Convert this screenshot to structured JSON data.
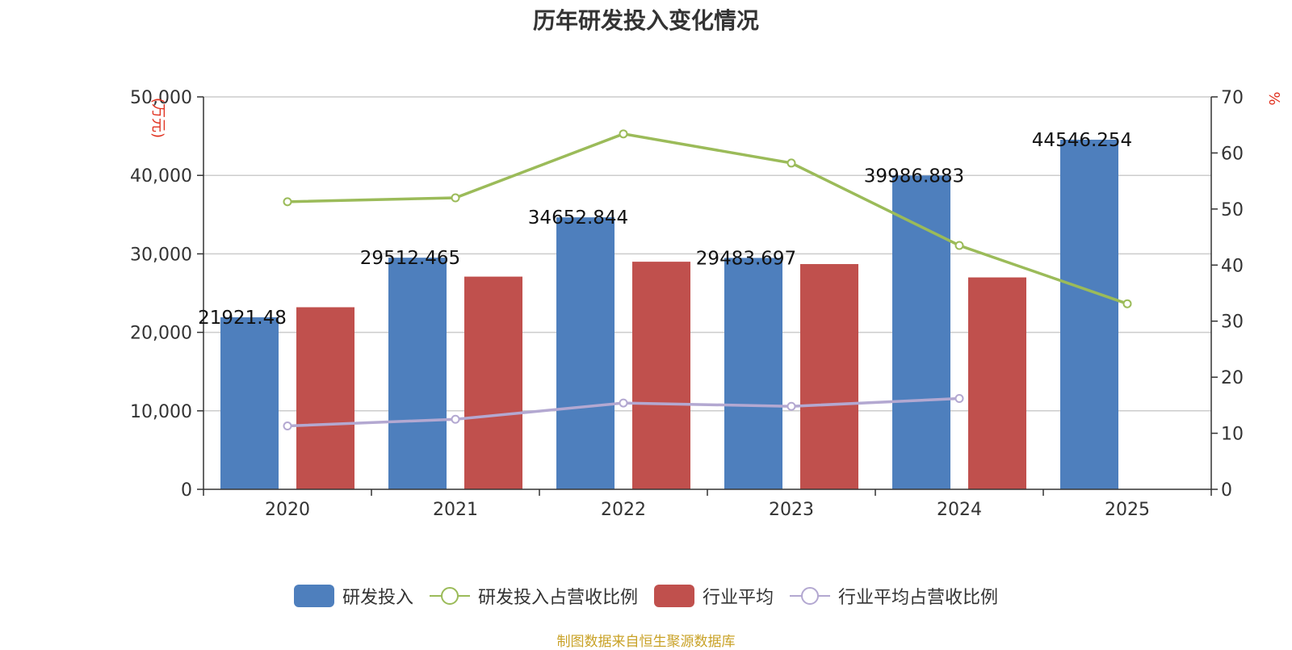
{
  "chart_data": {
    "type": "bar",
    "title": "历年研发投入变化情况",
    "categories": [
      "2020",
      "2021",
      "2022",
      "2023",
      "2024",
      "2025"
    ],
    "left_axis": {
      "unit": "万元",
      "ylim": [
        0,
        50000
      ],
      "ticks": [
        "0",
        "10,000",
        "20,000",
        "30,000",
        "40,000",
        "50,000"
      ],
      "tick_values": [
        0,
        10000,
        20000,
        30000,
        40000,
        50000
      ]
    },
    "right_axis": {
      "unit": "%",
      "ylim": [
        0,
        70
      ],
      "ticks": [
        "0",
        "10",
        "20",
        "30",
        "40",
        "50",
        "60",
        "70"
      ],
      "tick_values": [
        0,
        10,
        20,
        30,
        40,
        50,
        60,
        70
      ]
    },
    "series": [
      {
        "name": "研发投入",
        "kind": "bar",
        "axis": "left",
        "color": "#4e7fbd",
        "values": [
          21921.48,
          29512.465,
          34652.844,
          29483.697,
          39986.883,
          44546.254
        ],
        "labels": [
          "21921.48",
          "29512.465",
          "34652.844",
          "29483.697",
          "39986.883",
          "44546.254"
        ]
      },
      {
        "name": "研发投入占营收比例",
        "kind": "line",
        "axis": "right",
        "color": "#9bbb59",
        "values": [
          51.3,
          52.0,
          63.4,
          58.2,
          43.5,
          33.1
        ]
      },
      {
        "name": "行业平均",
        "kind": "bar",
        "axis": "left",
        "color": "#c0504d",
        "values": [
          23200,
          27100,
          29000,
          28700,
          27000,
          null
        ]
      },
      {
        "name": "行业平均占营收比例",
        "kind": "line",
        "axis": "right",
        "color": "#b3a8d1",
        "values": [
          11.3,
          12.5,
          15.4,
          14.8,
          16.2,
          null
        ]
      }
    ],
    "grid": true,
    "legend_position": "bottom"
  },
  "source_note": "制图数据来自恒生聚源数据库"
}
